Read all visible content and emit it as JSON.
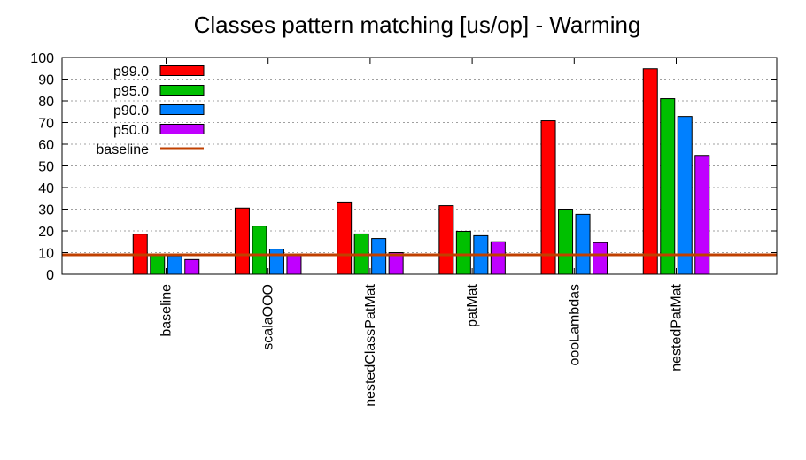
{
  "chart_data": {
    "type": "bar",
    "title": "Classes pattern matching [us/op] - Warming",
    "xlabel": "",
    "ylabel": "",
    "ylim": [
      0,
      100
    ],
    "yticks": [
      "0",
      "10",
      "20",
      "30",
      "40",
      "50",
      "60",
      "70",
      "80",
      "90",
      "100"
    ],
    "categories": [
      "baseline",
      "scalaOOO",
      "nestedClassPatMat",
      "patMat",
      "oooLambdas",
      "nestedPatMat"
    ],
    "series": [
      {
        "name": "p99.0",
        "color": "#ff0000",
        "values": [
          18.5,
          30.5,
          33.3,
          31.6,
          70.8,
          94.8
        ]
      },
      {
        "name": "p95.0",
        "color": "#00c000",
        "values": [
          9.0,
          22.2,
          18.6,
          19.8,
          30.0,
          81.0
        ]
      },
      {
        "name": "p90.0",
        "color": "#0080ff",
        "values": [
          8.5,
          11.6,
          16.5,
          17.8,
          27.6,
          72.8
        ]
      },
      {
        "name": "p50.0",
        "color": "#c000ff",
        "values": [
          6.8,
          8.9,
          10.0,
          15.0,
          14.6,
          54.8
        ]
      }
    ],
    "baseline": {
      "name": "baseline",
      "value": 9.0,
      "color": "#c04000"
    },
    "grid": true,
    "grid_axis": "y",
    "legend_position": "top-left"
  }
}
